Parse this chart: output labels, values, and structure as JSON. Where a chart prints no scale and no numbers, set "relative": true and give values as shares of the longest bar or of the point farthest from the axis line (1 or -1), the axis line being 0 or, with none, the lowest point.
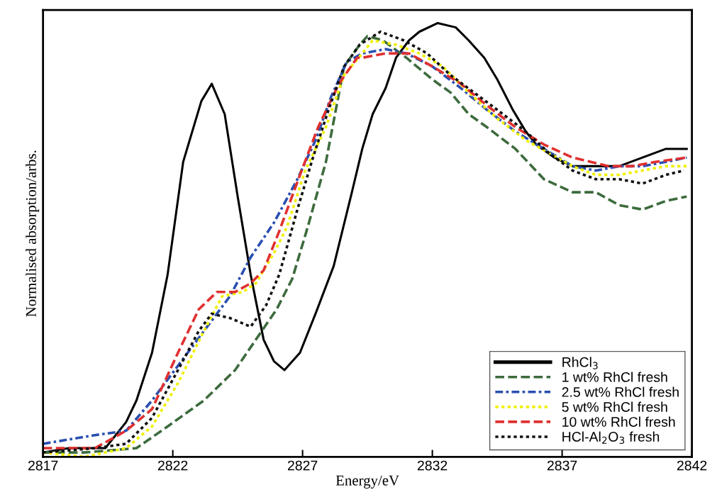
{
  "chart_data": {
    "type": "line",
    "relative": true,
    "xlabel": "Energy/eV",
    "ylabel": "Normalised absorption/arbs.",
    "xlim": [
      2817,
      2842
    ],
    "xticks": [
      2817,
      2822,
      2827,
      2832,
      2837,
      2842
    ],
    "tick_labels": "x",
    "grid": false,
    "legend": "bottom right",
    "marker": "none",
    "series": [
      {
        "name": "RhCl$_{3}$",
        "color": "#000000",
        "line_style": "solid",
        "x": [
          2817.0,
          2818.0,
          2819.4,
          2820.2,
          2820.6,
          2821.2,
          2821.8,
          2822.4,
          2823.1,
          2823.5,
          2824.0,
          2824.5,
          2825.0,
          2825.5,
          2825.9,
          2826.3,
          2826.9,
          2827.5,
          2828.2,
          2828.9,
          2829.3,
          2829.7,
          2830.2,
          2830.6,
          2831.1,
          2831.5,
          2832.2,
          2832.9,
          2833.4,
          2834.0,
          2834.5,
          2835.1,
          2835.6,
          2836.0,
          2836.7,
          2837.4,
          2838.3,
          2839.2,
          2840.1,
          2841.0,
          2841.8
        ],
        "values": [
          0.01,
          0.02,
          0.02,
          0.08,
          0.13,
          0.24,
          0.42,
          0.68,
          0.82,
          0.86,
          0.79,
          0.6,
          0.42,
          0.27,
          0.22,
          0.2,
          0.24,
          0.33,
          0.44,
          0.61,
          0.71,
          0.79,
          0.85,
          0.92,
          0.96,
          0.98,
          1.0,
          0.99,
          0.96,
          0.92,
          0.87,
          0.8,
          0.75,
          0.72,
          0.69,
          0.67,
          0.67,
          0.67,
          0.69,
          0.71,
          0.71
        ]
      },
      {
        "name": "1 wt% RhCl fresh",
        "color": "#3d6b3d",
        "line_style": "dashed",
        "x": [
          2817.0,
          2818.6,
          2820.6,
          2821.8,
          2823.2,
          2824.4,
          2825.2,
          2826.0,
          2826.6,
          2827.2,
          2827.9,
          2828.6,
          2829.2,
          2829.5,
          2830.1,
          2831.0,
          2832.0,
          2832.7,
          2833.4,
          2834.1,
          2835.2,
          2836.3,
          2837.4,
          2838.3,
          2839.2,
          2840.1,
          2841.0,
          2841.8
        ],
        "values": [
          0.01,
          0.01,
          0.02,
          0.07,
          0.13,
          0.2,
          0.27,
          0.34,
          0.41,
          0.53,
          0.68,
          0.9,
          0.95,
          0.97,
          0.96,
          0.92,
          0.87,
          0.84,
          0.79,
          0.76,
          0.71,
          0.64,
          0.61,
          0.61,
          0.58,
          0.57,
          0.59,
          0.6
        ]
      },
      {
        "name": "2.5 wt% RhCl fresh",
        "color": "#2a4fb0",
        "line_style": "dashdot",
        "x": [
          2817.0,
          2819.0,
          2820.2,
          2821.2,
          2822.2,
          2823.2,
          2824.2,
          2825.0,
          2825.9,
          2826.8,
          2827.5,
          2828.1,
          2828.7,
          2829.3,
          2830.2,
          2831.0,
          2832.0,
          2833.1,
          2834.1,
          2835.2,
          2836.3,
          2837.4,
          2838.3,
          2839.2,
          2840.1,
          2841.0,
          2841.8
        ],
        "values": [
          0.03,
          0.05,
          0.06,
          0.13,
          0.21,
          0.29,
          0.37,
          0.46,
          0.54,
          0.64,
          0.73,
          0.83,
          0.91,
          0.93,
          0.94,
          0.93,
          0.9,
          0.85,
          0.8,
          0.75,
          0.71,
          0.67,
          0.66,
          0.67,
          0.67,
          0.68,
          0.69
        ]
      },
      {
        "name": "5 wt% RhCl fresh",
        "color": "#f0f000",
        "line_style": "dotted",
        "x": [
          2817.0,
          2818.6,
          2820.2,
          2821.2,
          2822.2,
          2823.2,
          2823.9,
          2824.7,
          2825.2,
          2825.9,
          2826.4,
          2827.1,
          2827.9,
          2828.6,
          2829.3,
          2829.7,
          2830.6,
          2831.5,
          2832.4,
          2833.4,
          2834.5,
          2835.6,
          2836.5,
          2837.4,
          2838.3,
          2839.2,
          2840.1,
          2841.0,
          2841.8
        ],
        "values": [
          0.01,
          0.0,
          0.02,
          0.07,
          0.17,
          0.29,
          0.37,
          0.38,
          0.4,
          0.47,
          0.53,
          0.66,
          0.76,
          0.88,
          0.93,
          0.96,
          0.95,
          0.93,
          0.9,
          0.84,
          0.78,
          0.73,
          0.7,
          0.67,
          0.65,
          0.65,
          0.66,
          0.67,
          0.67
        ]
      },
      {
        "name": "10 wt% RhCl fresh",
        "color": "#e03030",
        "line_style": "dashed",
        "x": [
          2817.0,
          2819.0,
          2820.2,
          2821.2,
          2822.2,
          2823.0,
          2823.7,
          2824.4,
          2825.0,
          2825.5,
          2826.1,
          2826.9,
          2827.6,
          2828.4,
          2829.1,
          2829.3,
          2830.2,
          2831.1,
          2832.0,
          2833.1,
          2834.1,
          2835.2,
          2836.3,
          2837.4,
          2838.8,
          2839.7,
          2840.6,
          2841.8
        ],
        "values": [
          0.02,
          0.02,
          0.06,
          0.11,
          0.24,
          0.34,
          0.38,
          0.38,
          0.4,
          0.43,
          0.52,
          0.65,
          0.76,
          0.86,
          0.92,
          0.92,
          0.93,
          0.93,
          0.9,
          0.86,
          0.81,
          0.76,
          0.72,
          0.69,
          0.67,
          0.67,
          0.68,
          0.69
        ]
      },
      {
        "name": "HCl-Al$_{2}$O$_{3}$ fresh",
        "color": "#111111",
        "line_style": "dotted",
        "x": [
          2817.0,
          2819.0,
          2820.2,
          2821.2,
          2822.2,
          2823.0,
          2823.5,
          2824.2,
          2825.0,
          2825.6,
          2826.1,
          2826.8,
          2827.4,
          2828.0,
          2828.6,
          2829.2,
          2830.0,
          2830.9,
          2831.8,
          2832.7,
          2833.6,
          2834.5,
          2835.6,
          2836.5,
          2837.4,
          2838.3,
          2839.2,
          2840.1,
          2841.0,
          2841.7
        ],
        "values": [
          0.01,
          0.02,
          0.03,
          0.09,
          0.2,
          0.29,
          0.33,
          0.32,
          0.3,
          0.35,
          0.42,
          0.57,
          0.69,
          0.8,
          0.9,
          0.95,
          0.98,
          0.96,
          0.93,
          0.88,
          0.84,
          0.8,
          0.75,
          0.7,
          0.66,
          0.64,
          0.64,
          0.63,
          0.65,
          0.66
        ]
      }
    ]
  }
}
